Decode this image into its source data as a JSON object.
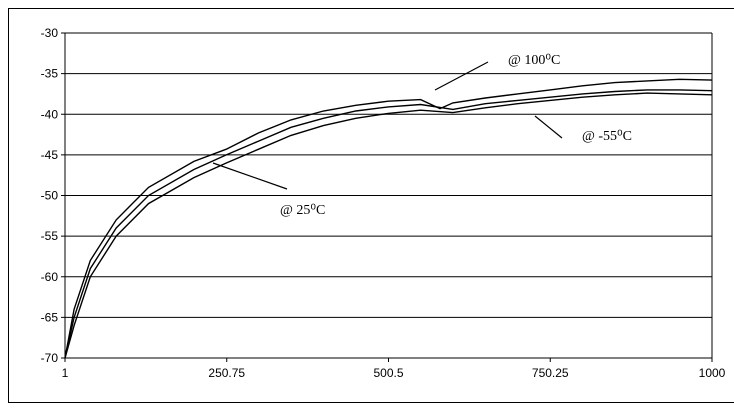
{
  "chart_data": {
    "type": "line",
    "title": "",
    "xlabel": "",
    "ylabel": "",
    "xlim": [
      1,
      1000
    ],
    "ylim": [
      -70,
      -30
    ],
    "x_ticks": [
      "1",
      "250.75",
      "500.5",
      "750.25",
      "1000"
    ],
    "y_ticks": [
      "-30",
      "-35",
      "-40",
      "-45",
      "-50",
      "-55",
      "-60",
      "-65",
      "-70"
    ],
    "grid": "horizontal",
    "series": [
      {
        "name": "@ 100⁰C",
        "x": [
          1,
          15,
          40,
          80,
          130,
          200,
          250,
          300,
          350,
          400,
          450,
          500,
          550,
          580,
          600,
          650,
          700,
          750,
          800,
          850,
          900,
          950,
          1000
        ],
        "values": [
          -70,
          -64,
          -58,
          -53,
          -49,
          -45.8,
          -44.3,
          -42.3,
          -40.7,
          -39.6,
          -38.9,
          -38.4,
          -38.2,
          -39.3,
          -38.6,
          -38.0,
          -37.5,
          -37.0,
          -36.5,
          -36.1,
          -35.9,
          -35.7,
          -35.8
        ]
      },
      {
        "name": "@ 25⁰C",
        "x": [
          1,
          15,
          40,
          80,
          130,
          200,
          250,
          300,
          350,
          400,
          450,
          500,
          550,
          600,
          650,
          700,
          750,
          800,
          850,
          900,
          950,
          1000
        ],
        "values": [
          -70,
          -65,
          -59,
          -54,
          -50,
          -46.8,
          -45.0,
          -43.3,
          -41.6,
          -40.5,
          -39.6,
          -39.1,
          -38.8,
          -39.4,
          -38.7,
          -38.3,
          -37.9,
          -37.5,
          -37.2,
          -37.0,
          -37.0,
          -37.1
        ]
      },
      {
        "name": "@ -55⁰C",
        "x": [
          1,
          15,
          40,
          80,
          130,
          200,
          250,
          300,
          350,
          400,
          450,
          500,
          550,
          600,
          650,
          700,
          750,
          800,
          850,
          900,
          950,
          1000
        ],
        "values": [
          -70,
          -66,
          -60,
          -55,
          -51,
          -47.8,
          -46.0,
          -44.3,
          -42.6,
          -41.4,
          -40.5,
          -39.9,
          -39.5,
          -39.8,
          -39.2,
          -38.7,
          -38.3,
          -37.9,
          -37.6,
          -37.4,
          -37.5,
          -37.6
        ]
      }
    ],
    "annotations": [
      {
        "id": "a100",
        "text": "@  100⁰C"
      },
      {
        "id": "a25",
        "text": "@  25⁰C"
      },
      {
        "id": "a55",
        "text": "@  -55⁰C"
      }
    ]
  }
}
